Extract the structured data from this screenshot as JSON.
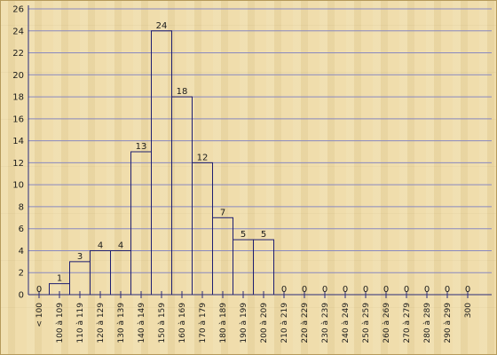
{
  "chart_data": {
    "type": "bar",
    "title": "",
    "xlabel": "",
    "ylabel": "",
    "ylim": [
      0,
      26
    ],
    "y_ticks": [
      "0",
      "2",
      "4",
      "6",
      "8",
      "10",
      "12",
      "14",
      "16",
      "18",
      "20",
      "22",
      "24",
      "26"
    ],
    "grid": true,
    "categories": [
      "< 100",
      "100 à 109",
      "110 à 119",
      "120 à 129",
      "130 à 139",
      "140 à 149",
      "150 à 159",
      "160 à 169",
      "170 à 179",
      "180 à 189",
      "190 à 199",
      "200 à 209",
      "210 à 219",
      "220 à 229",
      "230 à 239",
      "240 à 249",
      "250 à 259",
      "260 à 269",
      "270 à 279",
      "280 à 289",
      "290 à 299",
      "300"
    ],
    "values": [
      0,
      1,
      3,
      4,
      4,
      13,
      24,
      18,
      12,
      7,
      5,
      5,
      0,
      0,
      0,
      0,
      0,
      0,
      0,
      0,
      0,
      0
    ],
    "data_labels": [
      "0",
      "1",
      "3",
      "4",
      "4",
      "13",
      "24",
      "18",
      "12",
      "7",
      "5",
      "5",
      "0",
      "0",
      "0",
      "0",
      "0",
      "0",
      "0",
      "0",
      "0",
      "0"
    ],
    "colors": {
      "background": "#efdca9",
      "bar_stroke": "#1e1e70",
      "grid": "#8888c0"
    }
  }
}
